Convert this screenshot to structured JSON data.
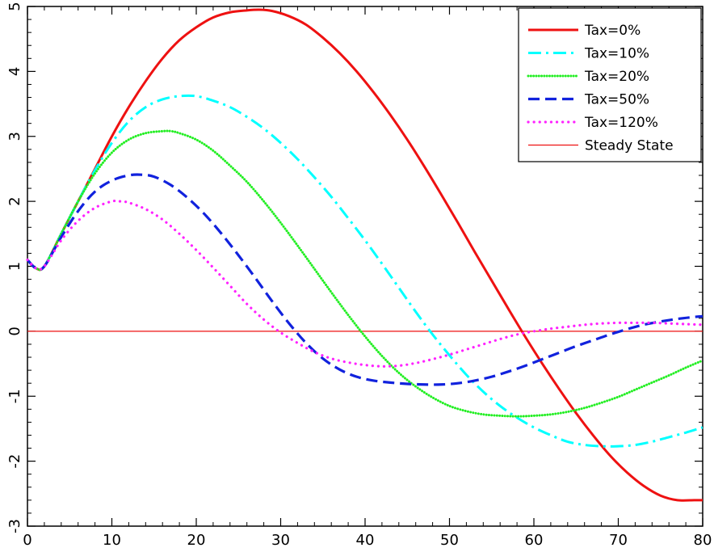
{
  "chart_data": {
    "type": "line",
    "title": "",
    "xlabel": "",
    "ylabel": "",
    "xlim": [
      0,
      80
    ],
    "ylim": [
      -3,
      5
    ],
    "xticks": [
      0,
      10,
      20,
      30,
      40,
      50,
      60,
      70,
      80
    ],
    "yticks": [
      -3,
      -2,
      -1,
      0,
      1,
      2,
      3,
      4,
      5
    ],
    "legend_position": "top-right",
    "grid": false,
    "series": [
      {
        "name": "Tax=0%",
        "color": "#ee1111",
        "style": "solid",
        "x": [
          0,
          1,
          2,
          4,
          6,
          8,
          10,
          12,
          14,
          16,
          18,
          20,
          22,
          24,
          26,
          27.5,
          29,
          31,
          33,
          35,
          37,
          39,
          41,
          43,
          45,
          47,
          49,
          51,
          53,
          55,
          57,
          59,
          61,
          63,
          65,
          67,
          69,
          71,
          73,
          75,
          77,
          79,
          80
        ],
        "y": [
          1.1,
          0.97,
          1.0,
          1.5,
          2.0,
          2.5,
          3.0,
          3.45,
          3.85,
          4.2,
          4.48,
          4.68,
          4.83,
          4.91,
          4.94,
          4.95,
          4.93,
          4.85,
          4.72,
          4.52,
          4.28,
          4.0,
          3.68,
          3.33,
          2.95,
          2.54,
          2.11,
          1.67,
          1.22,
          0.78,
          0.34,
          -0.09,
          -0.5,
          -0.89,
          -1.26,
          -1.6,
          -1.91,
          -2.17,
          -2.38,
          -2.53,
          -2.6,
          -2.6,
          -2.6
        ]
      },
      {
        "name": "Tax=10%",
        "color": "#00ffff",
        "style": "dashdot",
        "x": [
          0,
          1,
          2,
          4,
          6,
          8,
          10,
          12,
          14,
          16,
          18,
          20,
          22,
          24,
          26,
          28,
          30,
          32,
          34,
          36,
          38,
          40,
          42,
          44,
          46,
          48,
          50,
          52,
          54,
          56,
          58,
          60,
          62,
          64,
          66,
          68,
          70,
          72,
          74,
          76,
          78,
          80
        ],
        "y": [
          1.1,
          0.97,
          1.0,
          1.5,
          2.0,
          2.48,
          2.9,
          3.23,
          3.45,
          3.57,
          3.62,
          3.62,
          3.55,
          3.45,
          3.3,
          3.12,
          2.9,
          2.65,
          2.37,
          2.07,
          1.74,
          1.4,
          1.04,
          0.67,
          0.3,
          -0.05,
          -0.37,
          -0.67,
          -0.93,
          -1.15,
          -1.33,
          -1.48,
          -1.6,
          -1.7,
          -1.75,
          -1.77,
          -1.77,
          -1.75,
          -1.7,
          -1.63,
          -1.56,
          -1.48
        ]
      },
      {
        "name": "Tax=20%",
        "color": "#22ee22",
        "style": "dotted",
        "x": [
          0,
          1,
          2,
          4,
          6,
          8,
          10,
          12,
          14,
          16,
          17,
          18,
          20,
          22,
          24,
          26,
          28,
          30,
          32,
          34,
          36,
          38,
          40,
          42,
          44,
          46,
          48,
          50,
          52,
          54,
          56,
          58,
          60,
          62,
          64,
          66,
          68,
          70,
          72,
          74,
          76,
          78,
          80
        ],
        "y": [
          1.1,
          0.97,
          1.0,
          1.5,
          2.0,
          2.43,
          2.75,
          2.95,
          3.05,
          3.08,
          3.08,
          3.05,
          2.95,
          2.78,
          2.55,
          2.3,
          2.0,
          1.67,
          1.32,
          0.96,
          0.6,
          0.25,
          -0.08,
          -0.38,
          -0.64,
          -0.85,
          -1.02,
          -1.15,
          -1.23,
          -1.28,
          -1.3,
          -1.31,
          -1.3,
          -1.28,
          -1.24,
          -1.18,
          -1.1,
          -1.01,
          -0.9,
          -0.79,
          -0.68,
          -0.56,
          -0.45
        ]
      },
      {
        "name": "Tax=50%",
        "color": "#1122dd",
        "style": "dashed",
        "x": [
          0,
          1,
          2,
          4,
          6,
          8,
          10,
          12,
          13.5,
          15,
          17,
          19,
          21,
          23,
          25,
          27,
          29,
          31,
          33,
          35,
          37,
          39,
          41,
          43,
          45,
          47,
          49,
          51,
          53,
          55,
          57,
          59,
          61,
          63,
          65,
          67,
          69,
          71,
          73,
          75,
          77,
          79,
          80
        ],
        "y": [
          1.1,
          0.97,
          1.0,
          1.45,
          1.85,
          2.15,
          2.32,
          2.4,
          2.41,
          2.38,
          2.25,
          2.05,
          1.8,
          1.5,
          1.17,
          0.82,
          0.46,
          0.12,
          -0.18,
          -0.42,
          -0.59,
          -0.7,
          -0.76,
          -0.79,
          -0.81,
          -0.82,
          -0.82,
          -0.8,
          -0.76,
          -0.7,
          -0.62,
          -0.53,
          -0.43,
          -0.33,
          -0.23,
          -0.14,
          -0.05,
          0.03,
          0.1,
          0.15,
          0.19,
          0.22,
          0.23
        ]
      },
      {
        "name": "Tax=120%",
        "color": "#ff22ff",
        "style": "dotted-wide",
        "x": [
          0,
          1,
          2,
          4,
          6,
          8,
          10,
          11,
          12,
          14,
          16,
          18,
          20,
          22,
          24,
          26,
          28,
          30,
          32,
          34,
          36,
          38,
          40,
          42,
          44,
          46,
          48,
          50,
          52,
          54,
          56,
          58,
          60,
          62,
          64,
          66,
          68,
          70,
          72,
          74,
          76,
          78,
          80
        ],
        "y": [
          1.1,
          0.97,
          1.0,
          1.4,
          1.7,
          1.9,
          2.0,
          2.0,
          1.98,
          1.88,
          1.72,
          1.5,
          1.25,
          0.98,
          0.7,
          0.42,
          0.18,
          -0.02,
          -0.18,
          -0.32,
          -0.42,
          -0.48,
          -0.52,
          -0.54,
          -0.53,
          -0.49,
          -0.43,
          -0.36,
          -0.28,
          -0.2,
          -0.12,
          -0.05,
          0.0,
          0.04,
          0.07,
          0.1,
          0.12,
          0.13,
          0.13,
          0.13,
          0.12,
          0.11,
          0.1
        ]
      },
      {
        "name": "Steady State",
        "color": "#ee1111",
        "style": "thin",
        "x": [
          0,
          80
        ],
        "y": [
          0,
          0
        ]
      }
    ]
  }
}
